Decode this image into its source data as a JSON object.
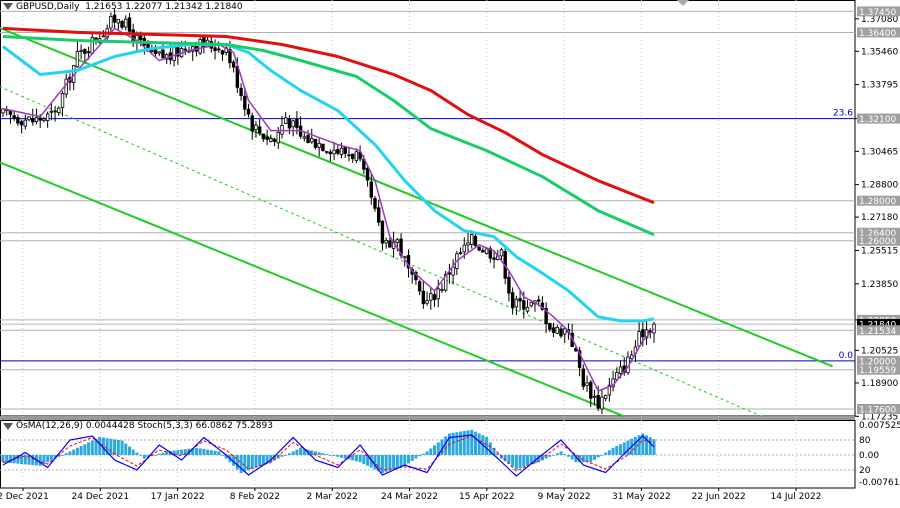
{
  "header": {
    "symbol": "GBPUSD,Daily",
    "ohlc": "1.21653 1.22077 1.21342 1.21840"
  },
  "indicator": {
    "label": "OsMA(12,26,9) 0.0044428  Stoch(5,3,3) 66.0862 75.2893"
  },
  "colors": {
    "candle": "#000000",
    "ema_fast": "#9a3bbd",
    "ema_mid": "#21d5f0",
    "ema_144": "#19cc6a",
    "ema_200": "#e01010",
    "channel": "#1fcc1f",
    "hline": "#0000cc",
    "osma": "#2aa9e0",
    "stoch_main": "#0000ff",
    "stoch_signal": "#ff0000"
  },
  "chart_data": [
    {
      "type": "candlestick",
      "title": "GBPUSD,Daily",
      "ylim": [
        1.1725,
        1.3802
      ],
      "price_axis_ticks": [
        "1.37080",
        "1.35460",
        "1.33795",
        "1.32100",
        "1.30465",
        "1.28800",
        "1.27180",
        "1.25515",
        "1.23850",
        "1.22050",
        "1.20525",
        "1.18900",
        "1.17235"
      ],
      "date_labels": [
        "2 Dec 2021",
        "24 Dec 2021",
        "17 Jan 2022",
        "8 Feb 2022",
        "2 Mar 2022",
        "24 Mar 2022",
        "15 Apr 2022",
        "9 May 2022",
        "31 May 2022",
        "22 Jun 2022",
        "14 Jul 2022"
      ],
      "highlighted_levels": [
        {
          "label": "1.37450",
          "value": 1.3745
        },
        {
          "label": "1.36400",
          "value": 1.364
        },
        {
          "label": "1.32100",
          "value": 1.321,
          "line": true,
          "annotation": "23.6"
        },
        {
          "label": "1.28000",
          "value": 1.28
        },
        {
          "label": "1.26400",
          "value": 1.264
        },
        {
          "label": "1.26000",
          "value": 1.26
        },
        {
          "label": "1.22050",
          "value": 1.2205
        },
        {
          "label": "1.21840",
          "value": 1.2184,
          "current": true
        },
        {
          "label": "1.21534",
          "value": 1.2153
        },
        {
          "label": "1.20000",
          "value": 1.2,
          "line": true,
          "annotation": "0.0"
        },
        {
          "label": "1.19559",
          "value": 1.1956
        },
        {
          "label": "1.17600",
          "value": 1.176
        }
      ],
      "price_path": [
        {
          "bar": 0,
          "close": 1.323
        },
        {
          "bar": 8,
          "close": 1.32
        },
        {
          "bar": 14,
          "close": 1.323
        },
        {
          "bar": 20,
          "close": 1.352
        },
        {
          "bar": 27,
          "close": 1.365
        },
        {
          "bar": 31,
          "close": 1.3725
        },
        {
          "bar": 35,
          "close": 1.362
        },
        {
          "bar": 40,
          "close": 1.352
        },
        {
          "bar": 45,
          "close": 1.352
        },
        {
          "bar": 50,
          "close": 1.358
        },
        {
          "bar": 55,
          "close": 1.358
        },
        {
          "bar": 60,
          "close": 1.356
        },
        {
          "bar": 64,
          "close": 1.334
        },
        {
          "bar": 67,
          "close": 1.318
        },
        {
          "bar": 70,
          "close": 1.313
        },
        {
          "bar": 73,
          "close": 1.31
        },
        {
          "bar": 76,
          "close": 1.322
        },
        {
          "bar": 80,
          "close": 1.312
        },
        {
          "bar": 85,
          "close": 1.309
        },
        {
          "bar": 90,
          "close": 1.305
        },
        {
          "bar": 95,
          "close": 1.303
        },
        {
          "bar": 98,
          "close": 1.287
        },
        {
          "bar": 102,
          "close": 1.26
        },
        {
          "bar": 106,
          "close": 1.26
        },
        {
          "bar": 110,
          "close": 1.24
        },
        {
          "bar": 114,
          "close": 1.229
        },
        {
          "bar": 118,
          "close": 1.238
        },
        {
          "bar": 122,
          "close": 1.252
        },
        {
          "bar": 126,
          "close": 1.26
        },
        {
          "bar": 130,
          "close": 1.255
        },
        {
          "bar": 134,
          "close": 1.253
        },
        {
          "bar": 137,
          "close": 1.228
        },
        {
          "bar": 140,
          "close": 1.229
        },
        {
          "bar": 144,
          "close": 1.228
        },
        {
          "bar": 148,
          "close": 1.215
        },
        {
          "bar": 152,
          "close": 1.216
        },
        {
          "bar": 156,
          "close": 1.19
        },
        {
          "bar": 160,
          "close": 1.179
        },
        {
          "bar": 164,
          "close": 1.19
        },
        {
          "bar": 168,
          "close": 1.2
        },
        {
          "bar": 172,
          "close": 1.215
        },
        {
          "bar": 175,
          "close": 1.2184
        }
      ],
      "moving_averages": [
        {
          "name": "EMA fast",
          "color_key": "ema_fast",
          "points": [
            [
              0,
              1.326
            ],
            [
              10,
              1.322
            ],
            [
              20,
              1.345
            ],
            [
              30,
              1.366
            ],
            [
              36,
              1.36
            ],
            [
              42,
              1.35
            ],
            [
              50,
              1.355
            ],
            [
              58,
              1.358
            ],
            [
              62,
              1.354
            ],
            [
              66,
              1.33
            ],
            [
              72,
              1.315
            ],
            [
              80,
              1.315
            ],
            [
              90,
              1.308
            ],
            [
              96,
              1.305
            ],
            [
              100,
              1.29
            ],
            [
              104,
              1.262
            ],
            [
              110,
              1.245
            ],
            [
              116,
              1.235
            ],
            [
              122,
              1.25
            ],
            [
              128,
              1.258
            ],
            [
              132,
              1.255
            ],
            [
              136,
              1.245
            ],
            [
              140,
              1.232
            ],
            [
              144,
              1.228
            ],
            [
              148,
              1.222
            ],
            [
              152,
              1.215
            ],
            [
              156,
              1.2
            ],
            [
              160,
              1.185
            ],
            [
              164,
              1.188
            ],
            [
              168,
              1.197
            ],
            [
              172,
              1.21
            ],
            [
              175,
              1.216
            ]
          ]
        },
        {
          "name": "EMA mid",
          "color_key": "ema_mid",
          "points": [
            [
              0,
              1.357
            ],
            [
              10,
              1.343
            ],
            [
              20,
              1.345
            ],
            [
              30,
              1.352
            ],
            [
              40,
              1.356
            ],
            [
              50,
              1.358
            ],
            [
              60,
              1.358
            ],
            [
              66,
              1.354
            ],
            [
              72,
              1.345
            ],
            [
              80,
              1.335
            ],
            [
              90,
              1.325
            ],
            [
              100,
              1.308
            ],
            [
              108,
              1.29
            ],
            [
              116,
              1.275
            ],
            [
              124,
              1.265
            ],
            [
              132,
              1.262
            ],
            [
              138,
              1.252
            ],
            [
              144,
              1.245
            ],
            [
              152,
              1.235
            ],
            [
              160,
              1.222
            ],
            [
              166,
              1.22
            ],
            [
              172,
              1.22
            ],
            [
              175,
              1.221
            ]
          ]
        },
        {
          "name": "EMA 144",
          "color_key": "ema_144",
          "points": [
            [
              0,
              1.362
            ],
            [
              20,
              1.36
            ],
            [
              40,
              1.359
            ],
            [
              60,
              1.358
            ],
            [
              70,
              1.355
            ],
            [
              80,
              1.35
            ],
            [
              95,
              1.342
            ],
            [
              105,
              1.33
            ],
            [
              115,
              1.316
            ],
            [
              130,
              1.305
            ],
            [
              145,
              1.292
            ],
            [
              160,
              1.275
            ],
            [
              175,
              1.263
            ]
          ]
        },
        {
          "name": "EMA 200",
          "color_key": "ema_200",
          "points": [
            [
              0,
              1.366
            ],
            [
              20,
              1.364
            ],
            [
              40,
              1.363
            ],
            [
              60,
              1.362
            ],
            [
              75,
              1.358
            ],
            [
              90,
              1.352
            ],
            [
              105,
              1.343
            ],
            [
              115,
              1.335
            ],
            [
              125,
              1.323
            ],
            [
              135,
              1.314
            ],
            [
              145,
              1.303
            ],
            [
              160,
              1.29
            ],
            [
              175,
              1.279
            ]
          ]
        }
      ],
      "trend_lines": [
        {
          "style": "solid",
          "color_key": "channel",
          "from": [
            -4,
            1.3686
          ],
          "to": [
            223,
            1.1973
          ]
        },
        {
          "style": "solid",
          "color_key": "channel",
          "from": [
            -4,
            1.3015
          ],
          "to": [
            167,
            1.1723
          ]
        },
        {
          "style": "dashed",
          "color_key": "channel",
          "from": [
            -4,
            1.3394
          ],
          "to": [
            204,
            1.1723
          ]
        }
      ]
    },
    {
      "type": "bar",
      "title": "OsMA(12,26,9) 0.0044428  Stoch(5,3,3) 66.0862 75.2893",
      "axis_labels": [
        "0.007525",
        "80",
        "0.00",
        "20",
        "-0.007618"
      ],
      "stoch_levels": [
        20,
        80
      ],
      "osma_values": [
        {
          "bar": 0,
          "value": -0.002
        },
        {
          "bar": 10,
          "value": -0.003
        },
        {
          "bar": 18,
          "value": 0.001
        },
        {
          "bar": 26,
          "value": 0.005
        },
        {
          "bar": 32,
          "value": 0.004
        },
        {
          "bar": 38,
          "value": -0.001
        },
        {
          "bar": 44,
          "value": 0.001
        },
        {
          "bar": 52,
          "value": 0.002
        },
        {
          "bar": 58,
          "value": 0.001
        },
        {
          "bar": 64,
          "value": -0.005
        },
        {
          "bar": 72,
          "value": -0.002
        },
        {
          "bar": 80,
          "value": 0.002
        },
        {
          "bar": 88,
          "value": 0.0
        },
        {
          "bar": 96,
          "value": -0.002
        },
        {
          "bar": 102,
          "value": -0.005
        },
        {
          "bar": 108,
          "value": -0.003
        },
        {
          "bar": 114,
          "value": 0.001
        },
        {
          "bar": 120,
          "value": 0.006
        },
        {
          "bar": 126,
          "value": 0.007
        },
        {
          "bar": 130,
          "value": 0.005
        },
        {
          "bar": 134,
          "value": -0.001
        },
        {
          "bar": 138,
          "value": -0.004
        },
        {
          "bar": 144,
          "value": -0.002
        },
        {
          "bar": 150,
          "value": 0.001
        },
        {
          "bar": 154,
          "value": -0.002
        },
        {
          "bar": 158,
          "value": -0.002
        },
        {
          "bar": 164,
          "value": 0.002
        },
        {
          "bar": 168,
          "value": 0.004
        },
        {
          "bar": 172,
          "value": 0.006
        },
        {
          "bar": 175,
          "value": 0.0044
        }
      ],
      "stoch_main": [
        {
          "bar": 0,
          "value": 30
        },
        {
          "bar": 6,
          "value": 55
        },
        {
          "bar": 12,
          "value": 25
        },
        {
          "bar": 18,
          "value": 80
        },
        {
          "bar": 24,
          "value": 88
        },
        {
          "bar": 30,
          "value": 40
        },
        {
          "bar": 36,
          "value": 20
        },
        {
          "bar": 42,
          "value": 70
        },
        {
          "bar": 48,
          "value": 40
        },
        {
          "bar": 54,
          "value": 85
        },
        {
          "bar": 60,
          "value": 50
        },
        {
          "bar": 66,
          "value": 10
        },
        {
          "bar": 72,
          "value": 40
        },
        {
          "bar": 78,
          "value": 85
        },
        {
          "bar": 84,
          "value": 40
        },
        {
          "bar": 90,
          "value": 25
        },
        {
          "bar": 96,
          "value": 70
        },
        {
          "bar": 102,
          "value": 10
        },
        {
          "bar": 108,
          "value": 30
        },
        {
          "bar": 114,
          "value": 15
        },
        {
          "bar": 120,
          "value": 85
        },
        {
          "bar": 126,
          "value": 90
        },
        {
          "bar": 132,
          "value": 50
        },
        {
          "bar": 138,
          "value": 8
        },
        {
          "bar": 144,
          "value": 45
        },
        {
          "bar": 150,
          "value": 80
        },
        {
          "bar": 156,
          "value": 30
        },
        {
          "bar": 162,
          "value": 15
        },
        {
          "bar": 168,
          "value": 60
        },
        {
          "bar": 172,
          "value": 88
        },
        {
          "bar": 175,
          "value": 66
        }
      ],
      "stoch_signal": [
        {
          "bar": 0,
          "value": 35
        },
        {
          "bar": 6,
          "value": 48
        },
        {
          "bar": 12,
          "value": 32
        },
        {
          "bar": 18,
          "value": 68
        },
        {
          "bar": 24,
          "value": 85
        },
        {
          "bar": 30,
          "value": 52
        },
        {
          "bar": 36,
          "value": 28
        },
        {
          "bar": 42,
          "value": 60
        },
        {
          "bar": 48,
          "value": 48
        },
        {
          "bar": 54,
          "value": 78
        },
        {
          "bar": 60,
          "value": 60
        },
        {
          "bar": 66,
          "value": 22
        },
        {
          "bar": 72,
          "value": 35
        },
        {
          "bar": 78,
          "value": 75
        },
        {
          "bar": 84,
          "value": 50
        },
        {
          "bar": 90,
          "value": 30
        },
        {
          "bar": 96,
          "value": 60
        },
        {
          "bar": 102,
          "value": 20
        },
        {
          "bar": 108,
          "value": 26
        },
        {
          "bar": 114,
          "value": 22
        },
        {
          "bar": 120,
          "value": 72
        },
        {
          "bar": 126,
          "value": 88
        },
        {
          "bar": 132,
          "value": 62
        },
        {
          "bar": 138,
          "value": 18
        },
        {
          "bar": 144,
          "value": 38
        },
        {
          "bar": 150,
          "value": 72
        },
        {
          "bar": 156,
          "value": 40
        },
        {
          "bar": 162,
          "value": 22
        },
        {
          "bar": 168,
          "value": 50
        },
        {
          "bar": 172,
          "value": 80
        },
        {
          "bar": 175,
          "value": 75
        }
      ]
    }
  ]
}
